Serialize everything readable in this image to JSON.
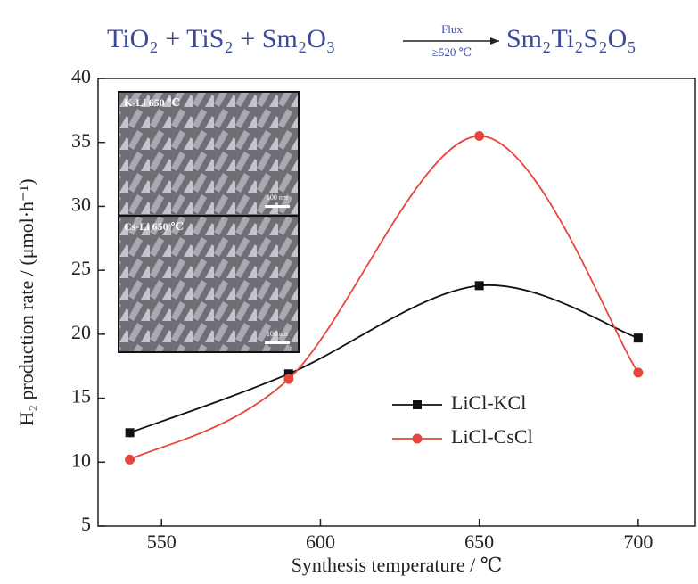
{
  "chart_data": {
    "type": "line",
    "title": {
      "left": "TiO₂ + TiS₂ + Sm₂O₃",
      "above_arrow": "Flux",
      "below_arrow": "≥520 ℃",
      "right": "Sm₂Ti₂S₂O₅"
    },
    "x_label": "Synthesis temperature  / ℃",
    "y_label": "H₂ production rate / (μmol·h⁻¹)",
    "x": [
      540,
      590,
      650,
      700
    ],
    "series": [
      {
        "name": "LiCl-KCl",
        "color": "#111111",
        "marker": "square",
        "values": [
          12.3,
          16.9,
          23.8,
          19.7
        ]
      },
      {
        "name": "LiCl-CsCl",
        "color": "#e8453c",
        "marker": "circle",
        "values": [
          10.2,
          16.5,
          35.5,
          17.0
        ]
      }
    ],
    "xlim": [
      530,
      718
    ],
    "xticks": [
      550,
      600,
      650,
      700
    ],
    "ylim": [
      5,
      40
    ],
    "yticks": [
      5,
      10,
      15,
      20,
      25,
      30,
      35,
      40
    ],
    "smooth": true,
    "legend_position": "center right",
    "inset": {
      "panels": [
        {
          "label": "K-Li 650 ℃",
          "scale": "100 nm"
        },
        {
          "label": "Cs-Li 650 ℃",
          "scale": "100 nm"
        }
      ]
    }
  }
}
